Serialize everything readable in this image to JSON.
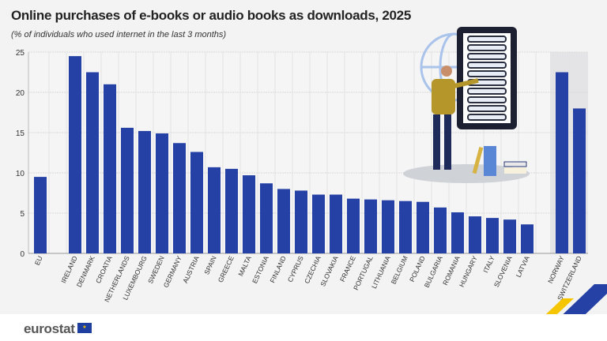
{
  "title": "Online purchases of e-books or audio books as downloads, 2025",
  "subtitle": "(% of individuals who used internet in the last 3 months)",
  "footer": {
    "logo": "eurostat"
  },
  "colors": {
    "bar": "#2541a5",
    "grid": "#d9d9d9",
    "highlight_bg": "#e4e4e6"
  },
  "chart_data": {
    "type": "bar",
    "title": "Online purchases of e-books or audio books as downloads, 2025",
    "subtitle": "(% of individuals who used internet in the last 3 months)",
    "ylim": [
      0,
      25
    ],
    "yticks": [
      0,
      5,
      10,
      15,
      20,
      25
    ],
    "grid": true,
    "categories": [
      "EU",
      "IRELAND",
      "DENMARK",
      "CROATIA",
      "NETHERLANDS",
      "LUXEMBOURG",
      "SWEDEN",
      "GERMANY",
      "AUSTRIA",
      "SPAIN",
      "GREECE",
      "MALTA",
      "ESTONIA",
      "FINLAND",
      "CYPRUS",
      "CZECHIA",
      "SLOVAKIA",
      "FRANCE",
      "PORTUGAL",
      "LITHUANIA",
      "BELGIUM",
      "POLAND",
      "BULGARIA",
      "ROMANIA",
      "HUNGARY",
      "ITALY",
      "SLOVENIA",
      "LATVIA",
      "NORWAY",
      "SWITZERLAND"
    ],
    "values": [
      9.5,
      24.5,
      22.5,
      21.0,
      15.6,
      15.2,
      14.9,
      13.7,
      12.6,
      10.7,
      10.5,
      9.7,
      8.7,
      8.0,
      7.8,
      7.3,
      7.3,
      6.8,
      6.7,
      6.6,
      6.5,
      6.4,
      5.7,
      5.1,
      4.6,
      4.4,
      4.2,
      3.6,
      22.5,
      18.0
    ]
  }
}
